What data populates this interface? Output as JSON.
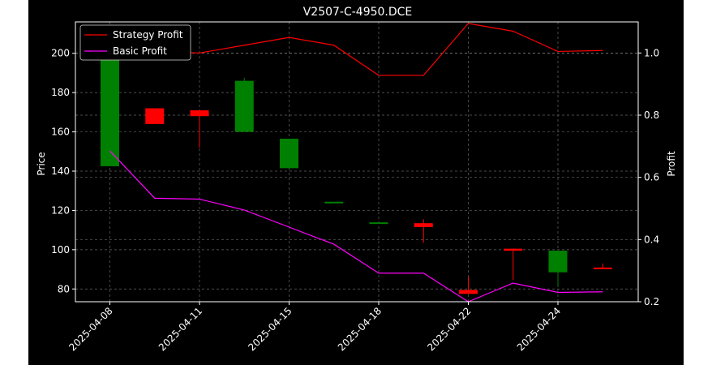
{
  "chart_data": {
    "type": "candlestick+line",
    "title": "V2507-C-4950.DCE",
    "ylabel_left": "Price",
    "ylabel_right": "Profit",
    "ylim_left": [
      73.5,
      216
    ],
    "ylim_right": [
      0.2,
      1.1
    ],
    "yticks_left": [
      80,
      100,
      120,
      140,
      160,
      180,
      200
    ],
    "yticks_right": [
      0.2,
      0.4,
      0.6,
      0.8,
      1.0
    ],
    "ytick_labels_right": [
      "0.2",
      "0.4",
      "0.6",
      "0.8",
      "1.0"
    ],
    "xticks": [
      "2025-04-08",
      "2025-04-11",
      "2025-04-15",
      "2025-04-18",
      "2025-04-22",
      "2025-04-24"
    ],
    "grid": true,
    "legend_position": "top-left",
    "colors": {
      "up": "#008000",
      "down": "#ff0000",
      "strategy": "#ff0000",
      "basic": "#ff00ff",
      "background": "#000000",
      "text": "#ffffff",
      "grid": "#666666"
    },
    "candles": [
      {
        "index": 0,
        "open": 142.5,
        "close": 210.0,
        "high": 210.0,
        "low": 142.5
      },
      {
        "index": 1,
        "open": 172.0,
        "close": 164.0,
        "high": 172.0,
        "low": 164.0
      },
      {
        "index": 2,
        "open": 171.0,
        "close": 168.0,
        "high": 171.0,
        "low": 152.0
      },
      {
        "index": 3,
        "open": 160.0,
        "close": 186.0,
        "high": 187.5,
        "low": 160.0
      },
      {
        "index": 4,
        "open": 141.5,
        "close": 156.5,
        "high": 156.5,
        "low": 141.5
      },
      {
        "index": 5,
        "open": 124.0,
        "close": 124.0,
        "high": 124.0,
        "low": 124.0
      },
      {
        "index": 6,
        "open": 113.5,
        "close": 113.5,
        "high": 113.5,
        "low": 113.5
      },
      {
        "index": 7,
        "open": 113.5,
        "close": 111.5,
        "high": 115.5,
        "low": 103.5
      },
      {
        "index": 8,
        "open": 79.5,
        "close": 77.5,
        "high": 86.0,
        "low": 77.5
      },
      {
        "index": 9,
        "open": 100.5,
        "close": 99.5,
        "high": 100.5,
        "low": 84.5
      },
      {
        "index": 10,
        "open": 88.5,
        "close": 99.5,
        "high": 99.5,
        "low": 81.0
      },
      {
        "index": 11,
        "open": 90.5,
        "close": 90.0,
        "high": 93.0,
        "low": 90.0
      }
    ],
    "series": [
      {
        "name": "Strategy Profit",
        "values": [
          1.005,
          1.005,
          1.0,
          1.025,
          1.05,
          1.025,
          0.928,
          0.928,
          1.095,
          1.07,
          1.005,
          1.008
        ]
      },
      {
        "name": "Basic Profit",
        "values": [
          0.685,
          0.533,
          0.53,
          0.495,
          0.44,
          0.385,
          0.292,
          0.292,
          0.2,
          0.26,
          0.23,
          0.232
        ]
      }
    ]
  }
}
